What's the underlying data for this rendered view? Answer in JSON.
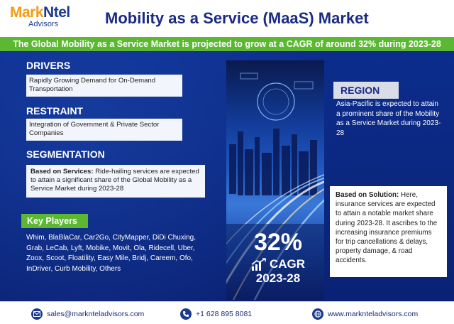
{
  "header": {
    "logo_primary": "MarkNtel",
    "logo_mark_part": "Mark",
    "logo_ntel_part": "Ntel",
    "logo_sub": "Advisors",
    "title": "Mobility as a Service (MaaS) Market"
  },
  "banner": "The Global Mobility as a Service Market is projected to grow at a CAGR of around 32% during 2023-28",
  "drivers": {
    "heading": "DRIVERS",
    "text": "Rapidly Growing Demand for On-Demand Transportation"
  },
  "restraint": {
    "heading": "RESTRAINT",
    "text": "Integration of Government & Private Sector Companies"
  },
  "segmentation": {
    "heading": "SEGMENTATION",
    "label": "Based on Services:",
    "text": " Ride-hailing services are expected to attain a significant share of the Global Mobility as a Service Market during 2023-28"
  },
  "key_players": {
    "heading": "Key Players",
    "text": "Whim, BlaBlaCar, Car2Go, CityMapper, DiDi Chuxing, Grab, LeCab, Lyft, Mobike, Movit, Ola, Ridecell, Uber, Zoox, Scoot, Floatility, Easy Mile, Bridj, Careem, Ofo, InDriver, Curb Mobility, Others"
  },
  "cagr": {
    "percent": "32%",
    "label": "CAGR",
    "years": "2023-28"
  },
  "region": {
    "heading": "REGION",
    "text": "Asia-Pacific is expected to attain a prominent share of the Mobility as a Service Market during 2023-28"
  },
  "solution": {
    "label": "Based on Solution:",
    "text": " Here, insurance services are expected to attain a notable market share during 2023-28. It ascribes to the increasing insurance premiums for trip cancellations & delays, property damage, & road accidents."
  },
  "footer": {
    "email": "sales@marknteladvisors.com",
    "phone": "+1 628 895 8081",
    "website": "www.marknteladvisors.com"
  },
  "colors": {
    "navy": "#0b2a86",
    "green": "#5cb832",
    "orange": "#f39c12",
    "title_blue": "#1b2b84"
  },
  "icons": [
    "email-icon",
    "phone-icon",
    "globe-icon",
    "growth-chart-icon"
  ]
}
